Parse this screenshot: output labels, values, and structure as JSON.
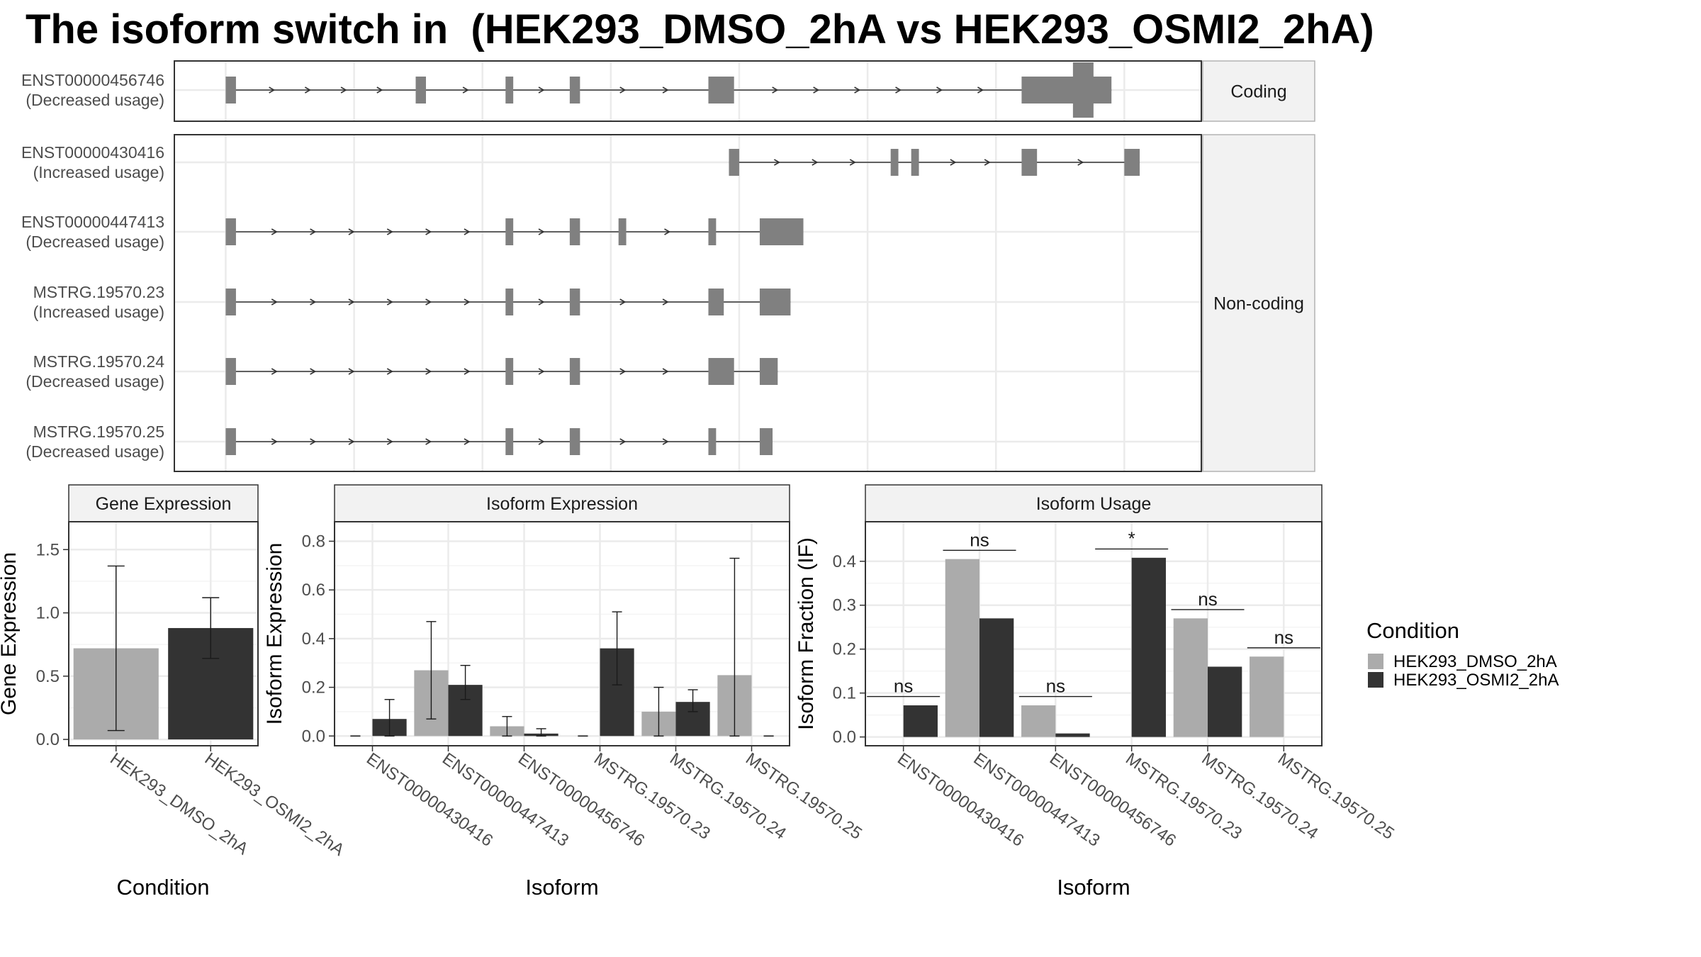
{
  "title": "The isoform switch in  (HEK293_DMSO_2hA vs HEK293_OSMI2_2hA)",
  "colors": {
    "dmso": "#ababab",
    "osmi": "#333333",
    "exon": "#808080",
    "strip": "#f2f2f2",
    "grid": "#ebebeb"
  },
  "transcripts": {
    "facet_labels": [
      "Coding",
      "Non-coding"
    ],
    "tick_positions": [
      29990000,
      29995000,
      30000000,
      30005000,
      30010000,
      30015000,
      30020000,
      30025000
    ],
    "coord_range": [
      29988000,
      30028000
    ],
    "isoforms": [
      {
        "id": "ENST00000456746",
        "usage": "(Decreased usage)",
        "facet": "Coding",
        "exons": [
          [
            29990000,
            29990400
          ],
          [
            29997400,
            29997800
          ],
          [
            30000900,
            30001200
          ],
          [
            30003400,
            30003800
          ],
          [
            30008800,
            30009800
          ],
          [
            30021000,
            30024500
          ]
        ],
        "cds": [
          [
            30023000,
            30023800
          ]
        ]
      },
      {
        "id": "ENST00000430416",
        "usage": "(Increased usage)",
        "facet": "Non-coding",
        "exons": [
          [
            30009600,
            30010000
          ],
          [
            30015900,
            30016200
          ],
          [
            30016700,
            30017000
          ],
          [
            30021000,
            30021600
          ],
          [
            30025000,
            30025600
          ]
        ]
      },
      {
        "id": "ENST00000447413",
        "usage": "(Decreased usage)",
        "facet": "Non-coding",
        "exons": [
          [
            29990000,
            29990400
          ],
          [
            30000900,
            30001200
          ],
          [
            30003400,
            30003800
          ],
          [
            30005300,
            30005600
          ],
          [
            30008800,
            30009100
          ],
          [
            30010800,
            30012500
          ]
        ]
      },
      {
        "id": "MSTRG.19570.23",
        "usage": "(Increased usage)",
        "facet": "Non-coding",
        "exons": [
          [
            29990000,
            29990400
          ],
          [
            30000900,
            30001200
          ],
          [
            30003400,
            30003800
          ],
          [
            30008800,
            30009400
          ],
          [
            30010800,
            30012000
          ]
        ]
      },
      {
        "id": "MSTRG.19570.24",
        "usage": "(Decreased usage)",
        "facet": "Non-coding",
        "exons": [
          [
            29990000,
            29990400
          ],
          [
            30000900,
            30001200
          ],
          [
            30003400,
            30003800
          ],
          [
            30008800,
            30009800
          ],
          [
            30010800,
            30011500
          ]
        ]
      },
      {
        "id": "MSTRG.19570.25",
        "usage": "(Decreased usage)",
        "facet": "Non-coding",
        "exons": [
          [
            29990000,
            29990400
          ],
          [
            30000900,
            30001200
          ],
          [
            30003400,
            30003800
          ],
          [
            30008800,
            30009100
          ],
          [
            30010800,
            30011300
          ]
        ]
      }
    ]
  },
  "legend": {
    "title": "Condition",
    "items": [
      "HEK293_DMSO_2hA",
      "HEK293_OSMI2_2hA"
    ]
  },
  "chart_data": [
    {
      "type": "bar",
      "strip": "Gene Expression",
      "xlabel": "Condition",
      "ylabel": "Gene Expression",
      "ylim": [
        -0.05,
        1.72
      ],
      "yticks": [
        0.0,
        0.5,
        1.0,
        1.5
      ],
      "ytick_labels": [
        "0.0",
        "0.5",
        "1.0",
        "1.5"
      ],
      "categories": [
        "HEK293_DMSO_2hA",
        "HEK293_OSMI2_2hA"
      ],
      "values": [
        0.72,
        0.88
      ],
      "errors": [
        [
          0.07,
          1.37
        ],
        [
          0.64,
          1.12
        ]
      ]
    },
    {
      "type": "bar",
      "strip": "Isoform Expression",
      "xlabel": "Isoform",
      "ylabel": "Isoform Expression",
      "ylim": [
        -0.04,
        0.88
      ],
      "yticks": [
        0.0,
        0.2,
        0.4,
        0.6,
        0.8
      ],
      "ytick_labels": [
        "0.0",
        "0.2",
        "0.4",
        "0.6",
        "0.8"
      ],
      "categories": [
        "ENST00000430416",
        "ENST00000447413",
        "ENST00000456746",
        "MSTRG.19570.23",
        "MSTRG.19570.24",
        "MSTRG.19570.25"
      ],
      "series": [
        {
          "name": "HEK293_DMSO_2hA",
          "values": [
            0.0,
            0.27,
            0.04,
            0.0,
            0.1,
            0.25
          ],
          "errors": [
            [
              0.0,
              0.0
            ],
            [
              0.07,
              0.47
            ],
            [
              0.0,
              0.08
            ],
            [
              0.0,
              0.0
            ],
            [
              0.0,
              0.2
            ],
            [
              0.0,
              0.73
            ]
          ]
        },
        {
          "name": "HEK293_OSMI2_2hA",
          "values": [
            0.07,
            0.21,
            0.01,
            0.36,
            0.14,
            0.0
          ],
          "errors": [
            [
              0.0,
              0.15
            ],
            [
              0.15,
              0.29
            ],
            [
              0.0,
              0.03
            ],
            [
              0.21,
              0.51
            ],
            [
              0.1,
              0.19
            ],
            [
              0.0,
              0.0
            ]
          ]
        }
      ]
    },
    {
      "type": "bar",
      "strip": "Isoform Usage",
      "xlabel": "Isoform",
      "ylabel": "Isoform Fraction (IF)",
      "ylim": [
        -0.02,
        0.49
      ],
      "yticks": [
        0.0,
        0.1,
        0.2,
        0.3,
        0.4
      ],
      "ytick_labels": [
        "0.0",
        "0.1",
        "0.2",
        "0.3",
        "0.4"
      ],
      "categories": [
        "ENST00000430416",
        "ENST00000447413",
        "ENST00000456746",
        "MSTRG.19570.23",
        "MSTRG.19570.24",
        "MSTRG.19570.25"
      ],
      "series": [
        {
          "name": "HEK293_DMSO_2hA",
          "values": [
            0.0,
            0.405,
            0.072,
            0.0,
            0.27,
            0.183
          ]
        },
        {
          "name": "HEK293_OSMI2_2hA",
          "values": [
            0.072,
            0.27,
            0.008,
            0.408,
            0.16,
            0.0
          ]
        }
      ],
      "annotations": [
        {
          "category": "ENST00000430416",
          "label": "ns",
          "y": 0.092
        },
        {
          "category": "ENST00000447413",
          "label": "ns",
          "y": 0.425
        },
        {
          "category": "ENST00000456746",
          "label": "ns",
          "y": 0.092
        },
        {
          "category": "MSTRG.19570.23",
          "label": "*",
          "y": 0.428
        },
        {
          "category": "MSTRG.19570.24",
          "label": "ns",
          "y": 0.29
        },
        {
          "category": "MSTRG.19570.25",
          "label": "ns",
          "y": 0.203
        }
      ]
    }
  ]
}
